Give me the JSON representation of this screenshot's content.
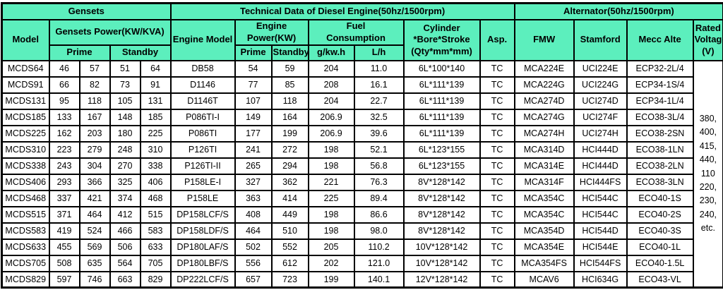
{
  "colors": {
    "header_bg": "#5CEFBD",
    "border": "#000000",
    "cell_bg": "#FFFFFF",
    "text": "#000000"
  },
  "sections": {
    "gensets": "Gensets",
    "engine": "Technical Data of Diesel Engine(50hz/1500rpm)",
    "alternator": "Alternator(50hz/1500rpm)"
  },
  "columns": {
    "model": "Model",
    "gensets_power": "Gensets Power(KW/KVA)",
    "prime": "Prime",
    "standby": "Standby",
    "engine_model": "Engine Model",
    "engine_power": "Engine\nPower(KW)",
    "fuel_consumption": "Fuel\nConsumption",
    "g_kwh": "g/kw.h",
    "l_h": "L/h",
    "cylinder": "Cylinder\n*Bore*Stroke\n(Qty*mm*mm)",
    "asp": "Asp.",
    "fmw": "FMW",
    "stamford": "Stamford",
    "mecc_alte": "Mecc Alte",
    "rated_voltage": "Rated\nVoltage\n(V)"
  },
  "column_keys": [
    "model",
    "prime-kw",
    "prime-kva",
    "standby-kw",
    "standby-kva",
    "engine-model",
    "engine-prime-kw",
    "engine-standby-kw",
    "fuel-g-kwh",
    "fuel-l-h",
    "cylinder",
    "asp",
    "fmw",
    "stamford",
    "mecc-alte"
  ],
  "rated_voltage_values": "380,\n400,\n415,\n440,\n110\n220,\n230,\n240,\netc.",
  "rows": [
    [
      "MCDS64",
      "46",
      "57",
      "51",
      "64",
      "DB58",
      "54",
      "59",
      "204",
      "11.0",
      "6L*100*140",
      "TC",
      "MCA224E",
      "UCI224E",
      "ECP32-2L/4"
    ],
    [
      "MCDS91",
      "66",
      "82",
      "73",
      "91",
      "D1146",
      "77",
      "85",
      "208",
      "16.1",
      "6L*111*139",
      "TC",
      "MCA224G",
      "UCI224G",
      "ECP34-1S/4"
    ],
    [
      "MCDS131",
      "95",
      "118",
      "105",
      "131",
      "D1146T",
      "107",
      "118",
      "204",
      "22.7",
      "6L*111*139",
      "TC",
      "MCA274D",
      "UCI274D",
      "ECP34-1L/4"
    ],
    [
      "MCDS185",
      "133",
      "167",
      "148",
      "185",
      "P086TI-I",
      "149",
      "164",
      "206.9",
      "32.5",
      "6L*111*139",
      "TC",
      "MCA274G",
      "UCI274F",
      "ECO38-3L/4"
    ],
    [
      "MCDS225",
      "162",
      "203",
      "180",
      "225",
      "P086TI",
      "177",
      "199",
      "206.9",
      "39.6",
      "6L*111*139",
      "TC",
      "MCA274H",
      "UCI274H",
      "ECO38-2SN"
    ],
    [
      "MCDS310",
      "223",
      "279",
      "248",
      "310",
      "P126TI",
      "241",
      "272",
      "198",
      "52.1",
      "6L*123*155",
      "TC",
      "MCA314D",
      "HCI444D",
      "ECO38-1LN"
    ],
    [
      "MCDS338",
      "243",
      "304",
      "270",
      "338",
      "P126TI-II",
      "265",
      "294",
      "198",
      "56.8",
      "6L*123*155",
      "TC",
      "MCA314E",
      "HCI444D",
      "ECO38-2LN"
    ],
    [
      "MCDS406",
      "293",
      "366",
      "325",
      "406",
      "P158LE-I",
      "327",
      "362",
      "221",
      "76.3",
      "8V*128*142",
      "TC",
      "MCA314F",
      "HCI444FS",
      "ECO38-3LN"
    ],
    [
      "MCDS468",
      "337",
      "421",
      "374",
      "468",
      "P158LE",
      "363",
      "414",
      "225",
      "89.4",
      "8V*128*142",
      "TC",
      "MCA354C",
      "HCI544C",
      "ECO40-1S"
    ],
    [
      "MCDS515",
      "371",
      "464",
      "412",
      "515",
      "DP158LCF/S",
      "408",
      "449",
      "198",
      "86.6",
      "8V*128*142",
      "TC",
      "MCA354C",
      "HCI544C",
      "ECO40-2S"
    ],
    [
      "MCDS583",
      "419",
      "524",
      "466",
      "583",
      "DP158LDF/S",
      "464",
      "510",
      "198",
      "98.0",
      "8V*128*142",
      "TC",
      "MCA354D",
      "HCI544D",
      "ECO40-3S"
    ],
    [
      "MCDS633",
      "455",
      "569",
      "506",
      "633",
      "DP180LAF/S",
      "502",
      "552",
      "205",
      "110.2",
      "10V*128*142",
      "TC",
      "MCA354E",
      "HCI544E",
      "ECO40-1L"
    ],
    [
      "MCDS705",
      "508",
      "635",
      "564",
      "705",
      "DP180LBF/S",
      "556",
      "612",
      "202",
      "121.0",
      "10V*128*142",
      "TC",
      "MCA354FS",
      "HCI544FS",
      "ECO40-1.5L"
    ],
    [
      "MCDS829",
      "597",
      "746",
      "663",
      "829",
      "DP222LCF/S",
      "657",
      "723",
      "199",
      "140.1",
      "12V*128*142",
      "TC",
      "MCAV6",
      "HCI634G",
      "ECO43-VL"
    ]
  ]
}
